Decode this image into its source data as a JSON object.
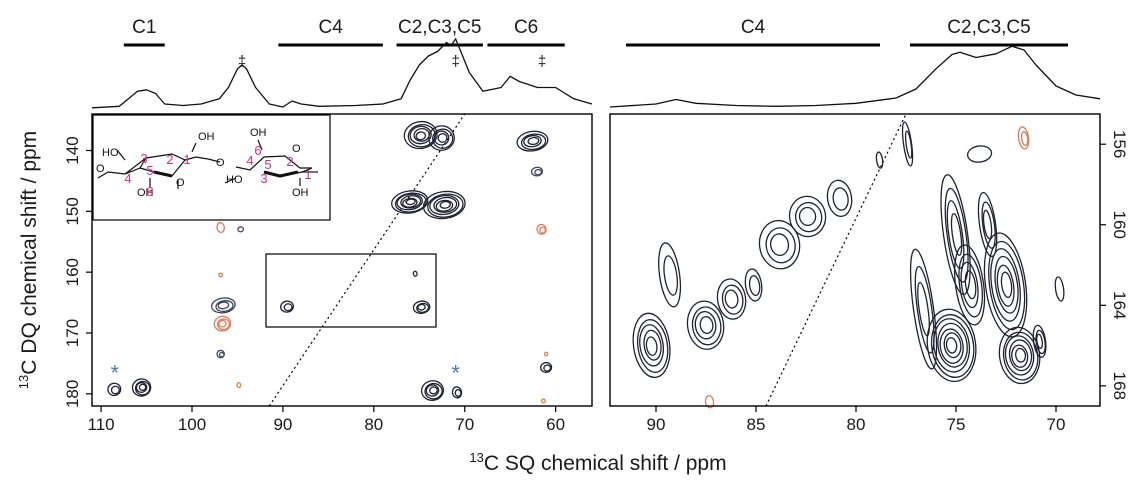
{
  "chart_data": [
    {
      "type": "contour",
      "panel": "left",
      "xlabel_sup": "13",
      "xlabel": "C SQ chemical shift / ppm",
      "ylabel_sup": "13",
      "ylabel": "C DQ chemical shift / ppm",
      "xlim": [
        111,
        56
      ],
      "ylim": [
        134,
        182
      ],
      "x_ticks": [
        110,
        100,
        90,
        80,
        70,
        60
      ],
      "y_ticks": [
        140,
        150,
        160,
        170,
        180
      ],
      "diagonal": {
        "style": "dotted",
        "x": [
          91.5,
          70
        ],
        "y": [
          182,
          134
        ]
      },
      "group_labels": [
        {
          "label": "C1",
          "x_range": [
            107.5,
            103
          ]
        },
        {
          "label": "C4",
          "x_range": [
            90.5,
            79
          ]
        },
        {
          "label": "C2,C3,C5",
          "x_range": [
            77.5,
            68
          ]
        },
        {
          "label": "C6",
          "x_range": [
            67.5,
            59
          ]
        }
      ],
      "dagger_marks": [
        {
          "text": "‡",
          "x": 94.5
        },
        {
          "text": "‡",
          "x": 71
        },
        {
          "text": "‡",
          "x": 61.5
        }
      ],
      "asterisks": [
        {
          "text": "*",
          "x": 108.5,
          "y": 176.5
        },
        {
          "text": "*",
          "x": 71,
          "y": 176.5
        }
      ],
      "projection": [
        [
          111,
          0.03
        ],
        [
          108,
          0.05
        ],
        [
          106,
          0.25
        ],
        [
          105,
          0.27
        ],
        [
          104,
          0.22
        ],
        [
          103,
          0.08
        ],
        [
          101,
          0.06
        ],
        [
          99,
          0.08
        ],
        [
          97,
          0.15
        ],
        [
          96,
          0.3
        ],
        [
          95,
          0.55
        ],
        [
          94.5,
          0.6
        ],
        [
          94,
          0.55
        ],
        [
          93,
          0.3
        ],
        [
          91.5,
          0.08
        ],
        [
          90,
          0.04
        ],
        [
          89,
          0.12
        ],
        [
          88,
          0.08
        ],
        [
          86,
          0.05
        ],
        [
          82,
          0.06
        ],
        [
          79,
          0.08
        ],
        [
          77,
          0.15
        ],
        [
          76,
          0.4
        ],
        [
          75,
          0.6
        ],
        [
          74,
          0.72
        ],
        [
          73,
          0.78
        ],
        [
          72,
          0.9
        ],
        [
          71.5,
          0.86
        ],
        [
          71,
          0.95
        ],
        [
          70.5,
          0.8
        ],
        [
          69.5,
          0.5
        ],
        [
          68,
          0.25
        ],
        [
          66,
          0.3
        ],
        [
          65,
          0.45
        ],
        [
          64,
          0.38
        ],
        [
          62,
          0.3
        ],
        [
          60,
          0.3
        ],
        [
          58,
          0.15
        ],
        [
          56,
          0.08
        ]
      ],
      "peaks": [
        {
          "x": 105.5,
          "y": 179,
          "color": "#1f2233",
          "levels": 4,
          "rx": 1.0,
          "ry": 1.4
        },
        {
          "x": 108.5,
          "y": 179.3,
          "color": "#1f2233",
          "levels": 2,
          "rx": 0.7,
          "ry": 1.0
        },
        {
          "x": 74.8,
          "y": 137.5,
          "color": "#1f2233",
          "levels": 5,
          "rx": 1.8,
          "ry": 2.2
        },
        {
          "x": 72.5,
          "y": 138.0,
          "color": "#1f2233",
          "levels": 4,
          "rx": 1.4,
          "ry": 2.0
        },
        {
          "x": 76,
          "y": 148.5,
          "color": "#1f2233",
          "levels": 6,
          "rx": 2.0,
          "ry": 1.8
        },
        {
          "x": 72.2,
          "y": 149,
          "color": "#1f2233",
          "levels": 6,
          "rx": 2.3,
          "ry": 2.2
        },
        {
          "x": 62.5,
          "y": 138.5,
          "color": "#1f2233",
          "levels": 4,
          "rx": 1.7,
          "ry": 1.6
        },
        {
          "x": 62,
          "y": 143.5,
          "color": "#3c4260",
          "levels": 2,
          "rx": 0.6,
          "ry": 0.7
        },
        {
          "x": 61.5,
          "y": 153,
          "color": "#e07a5a",
          "levels": 2,
          "rx": 0.5,
          "ry": 0.8
        },
        {
          "x": 96.8,
          "y": 152.7,
          "color": "#e07a5a",
          "levels": 1,
          "rx": 0.4,
          "ry": 0.8
        },
        {
          "x": 94.6,
          "y": 153,
          "color": "#3c4260",
          "levels": 1,
          "rx": 0.3,
          "ry": 0.4
        },
        {
          "x": 96.5,
          "y": 165.5,
          "color": "#3c4260",
          "levels": 3,
          "rx": 1.3,
          "ry": 1.2
        },
        {
          "x": 96.6,
          "y": 168.5,
          "color": "#e07a5a",
          "levels": 3,
          "rx": 0.9,
          "ry": 1.2
        },
        {
          "x": 96.8,
          "y": 173.5,
          "color": "#3c4260",
          "levels": 2,
          "rx": 0.4,
          "ry": 0.6
        },
        {
          "x": 96.8,
          "y": 160.5,
          "color": "#e07a5a",
          "levels": 1,
          "rx": 0.2,
          "ry": 0.3
        },
        {
          "x": 94.8,
          "y": 178.6,
          "color": "#e07a5a",
          "levels": 1,
          "rx": 0.2,
          "ry": 0.4
        },
        {
          "x": 89.5,
          "y": 165.7,
          "color": "#1f2233",
          "levels": 2,
          "rx": 0.7,
          "ry": 0.9
        },
        {
          "x": 74.7,
          "y": 165.8,
          "color": "#1f2233",
          "levels": 3,
          "rx": 0.9,
          "ry": 1.0
        },
        {
          "x": 75.4,
          "y": 160.3,
          "color": "#1f2233",
          "levels": 1,
          "rx": 0.2,
          "ry": 0.4
        },
        {
          "x": 73.5,
          "y": 179.5,
          "color": "#1f2233",
          "levels": 4,
          "rx": 1.2,
          "ry": 1.6
        },
        {
          "x": 70.8,
          "y": 179.8,
          "color": "#1f2233",
          "levels": 2,
          "rx": 0.5,
          "ry": 0.9
        },
        {
          "x": 61,
          "y": 175.7,
          "color": "#1f2233",
          "levels": 2,
          "rx": 0.6,
          "ry": 0.8
        },
        {
          "x": 61.3,
          "y": 181.2,
          "color": "#e07a5a",
          "levels": 1,
          "rx": 0.2,
          "ry": 0.3
        },
        {
          "x": 61,
          "y": 173.5,
          "color": "#e07a5a",
          "levels": 1,
          "rx": 0.15,
          "ry": 0.3
        }
      ],
      "inset_structure": {
        "labels": [
          "HO",
          "OH",
          "O",
          "OH",
          "HO",
          "O",
          "OH",
          "OH",
          "O",
          "O"
        ],
        "left_ring_numbers": [
          "3",
          "2",
          "1",
          "4",
          "5",
          "6"
        ],
        "right_ring_numbers": [
          "6",
          "4",
          "5",
          "3",
          "2",
          "1"
        ],
        "number_color": "#d6307f"
      }
    },
    {
      "type": "contour",
      "panel": "right",
      "xlim": [
        92.3,
        67.8
      ],
      "ylim": [
        154.5,
        169
      ],
      "x_ticks": [
        90,
        85,
        80,
        75,
        70
      ],
      "y_ticks": [
        156,
        160,
        164,
        168
      ],
      "diagonal": {
        "style": "dotted",
        "x": [
          84.5,
          77.5
        ],
        "y": [
          169,
          154.5
        ]
      },
      "group_labels": [
        {
          "label": "C4",
          "x_range": [
            91.5,
            78.8
          ]
        },
        {
          "label": "C2,C3,C5",
          "x_range": [
            77.3,
            69.4
          ]
        }
      ],
      "projection": [
        [
          92.3,
          0.04
        ],
        [
          90,
          0.08
        ],
        [
          89,
          0.14
        ],
        [
          88,
          0.09
        ],
        [
          86,
          0.06
        ],
        [
          84,
          0.05
        ],
        [
          82,
          0.06
        ],
        [
          80,
          0.09
        ],
        [
          78,
          0.16
        ],
        [
          77,
          0.28
        ],
        [
          76,
          0.55
        ],
        [
          75.2,
          0.74
        ],
        [
          74.8,
          0.77
        ],
        [
          74,
          0.7
        ],
        [
          73,
          0.75
        ],
        [
          72.2,
          0.85
        ],
        [
          71.6,
          0.8
        ],
        [
          71,
          0.6
        ],
        [
          70,
          0.32
        ],
        [
          69,
          0.2
        ],
        [
          67.8,
          0.15
        ]
      ],
      "peaks": [
        {
          "x": 90.2,
          "y": 166.0,
          "color": "#1f2233",
          "levels": 5,
          "rx": 0.9,
          "ry": 1.6
        },
        {
          "x": 89.3,
          "y": 162.5,
          "color": "#1f2233",
          "levels": 2,
          "rx": 0.5,
          "ry": 1.6
        },
        {
          "x": 87.5,
          "y": 165.0,
          "color": "#1f2233",
          "levels": 4,
          "rx": 0.9,
          "ry": 1.2
        },
        {
          "x": 86.2,
          "y": 163.7,
          "color": "#1f2233",
          "levels": 3,
          "rx": 0.7,
          "ry": 1.0
        },
        {
          "x": 85.1,
          "y": 163.0,
          "color": "#1f2233",
          "levels": 2,
          "rx": 0.4,
          "ry": 0.8
        },
        {
          "x": 83.8,
          "y": 161.0,
          "color": "#1f2233",
          "levels": 3,
          "rx": 1.0,
          "ry": 1.2
        },
        {
          "x": 82.4,
          "y": 159.6,
          "color": "#1f2233",
          "levels": 3,
          "rx": 0.9,
          "ry": 1.0
        },
        {
          "x": 80.8,
          "y": 158.7,
          "color": "#1f2233",
          "levels": 2,
          "rx": 0.6,
          "ry": 0.9
        },
        {
          "x": 78.8,
          "y": 156.8,
          "color": "#1f2233",
          "levels": 1,
          "rx": 0.15,
          "ry": 0.4
        },
        {
          "x": 77.4,
          "y": 156.0,
          "color": "#1f2233",
          "levels": 2,
          "rx": 0.2,
          "ry": 1.1
        },
        {
          "x": 76.6,
          "y": 164.2,
          "color": "#1f2233",
          "levels": 3,
          "rx": 0.5,
          "ry": 3.0
        },
        {
          "x": 75.0,
          "y": 160.5,
          "color": "#1f2233",
          "levels": 4,
          "rx": 0.6,
          "ry": 3.0
        },
        {
          "x": 74.3,
          "y": 163.0,
          "color": "#1f2233",
          "levels": 4,
          "rx": 0.7,
          "ry": 2.0
        },
        {
          "x": 75.2,
          "y": 166.0,
          "color": "#1f2233",
          "levels": 7,
          "rx": 1.2,
          "ry": 1.8
        },
        {
          "x": 73.4,
          "y": 160.0,
          "color": "#1f2233",
          "levels": 3,
          "rx": 0.4,
          "ry": 1.6
        },
        {
          "x": 72.5,
          "y": 163.0,
          "color": "#1f2233",
          "levels": 6,
          "rx": 1.0,
          "ry": 2.6
        },
        {
          "x": 71.8,
          "y": 166.5,
          "color": "#1f2233",
          "levels": 6,
          "rx": 1.0,
          "ry": 1.4
        },
        {
          "x": 70.8,
          "y": 165.8,
          "color": "#1f2233",
          "levels": 3,
          "rx": 0.3,
          "ry": 0.8
        },
        {
          "x": 69.8,
          "y": 163.2,
          "color": "#1f2233",
          "levels": 1,
          "rx": 0.2,
          "ry": 0.6
        },
        {
          "x": 73.8,
          "y": 156.5,
          "color": "#1f2233",
          "levels": 1,
          "rx": 0.6,
          "ry": 0.4
        },
        {
          "x": 71.6,
          "y": 155.7,
          "color": "#e07a5a",
          "levels": 2,
          "rx": 0.25,
          "ry": 0.55
        },
        {
          "x": 87.3,
          "y": 168.8,
          "color": "#e07a5a",
          "levels": 1,
          "rx": 0.2,
          "ry": 0.3
        }
      ]
    }
  ]
}
